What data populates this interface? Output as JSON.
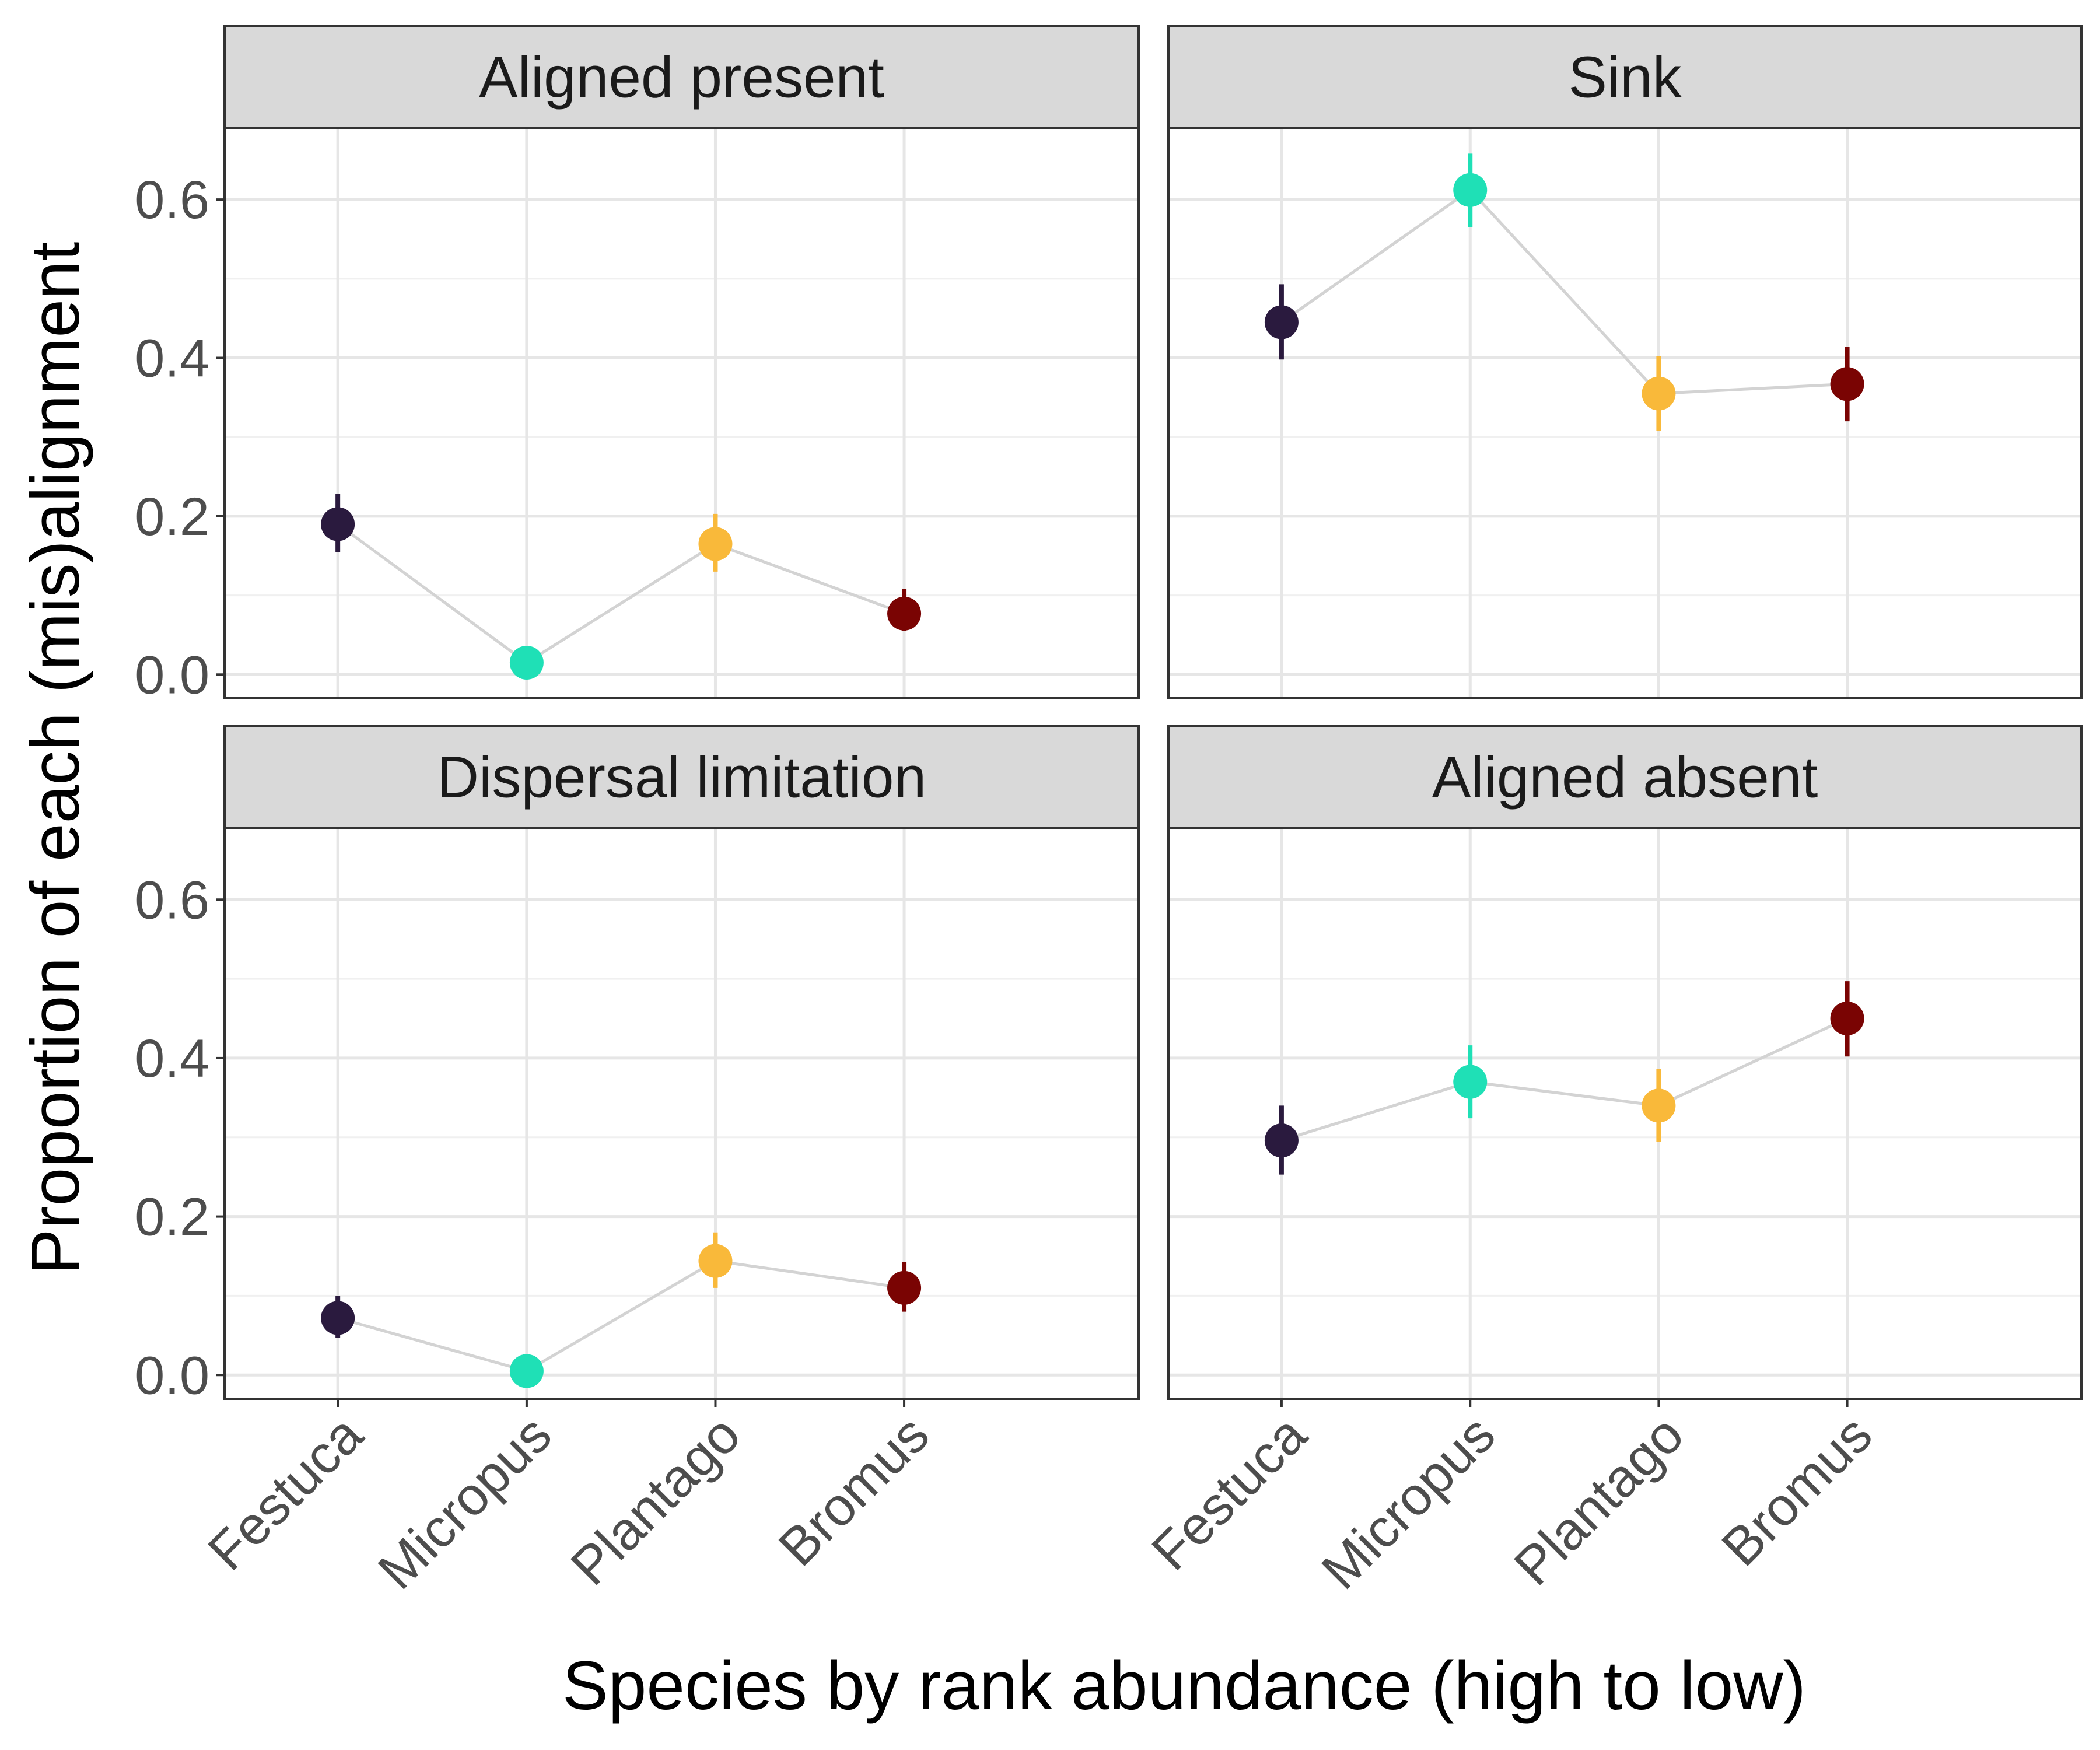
{
  "chart_data": {
    "type": "scatter",
    "layout": "facets-2x2",
    "xlabel": "Species by rank abundance (high to low)",
    "ylabel": "Proportion of each (mis)alignment",
    "categories": [
      "Festuca",
      "Micropus",
      "Plantago",
      "Bromus"
    ],
    "colors": {
      "Festuca": "#2a1a3e",
      "Micropus": "#1fe0b6",
      "Plantago": "#f9b93a",
      "Bromus": "#7a0403",
      "connector": "#d3d3d3"
    },
    "ylim": [
      -0.03,
      0.69
    ],
    "yticks": [
      "0.0",
      "0.2",
      "0.4",
      "0.6"
    ],
    "grid": true,
    "panels": [
      {
        "title": "Aligned present",
        "values": [
          0.19,
          0.015,
          0.165,
          0.077
        ],
        "err_low": [
          0.155,
          0.005,
          0.13,
          0.055
        ],
        "err_high": [
          0.228,
          0.025,
          0.203,
          0.108
        ]
      },
      {
        "title": "Sink",
        "values": [
          0.445,
          0.612,
          0.355,
          0.367
        ],
        "err_low": [
          0.398,
          0.565,
          0.308,
          0.32
        ],
        "err_high": [
          0.493,
          0.658,
          0.402,
          0.414
        ]
      },
      {
        "title": "Dispersal limitation",
        "values": [
          0.072,
          0.005,
          0.144,
          0.11
        ],
        "err_low": [
          0.047,
          0.0,
          0.11,
          0.08
        ],
        "err_high": [
          0.1,
          0.012,
          0.18,
          0.143
        ]
      },
      {
        "title": "Aligned absent",
        "values": [
          0.296,
          0.37,
          0.34,
          0.45
        ],
        "err_low": [
          0.253,
          0.324,
          0.294,
          0.402
        ],
        "err_high": [
          0.34,
          0.416,
          0.386,
          0.497
        ]
      }
    ]
  }
}
